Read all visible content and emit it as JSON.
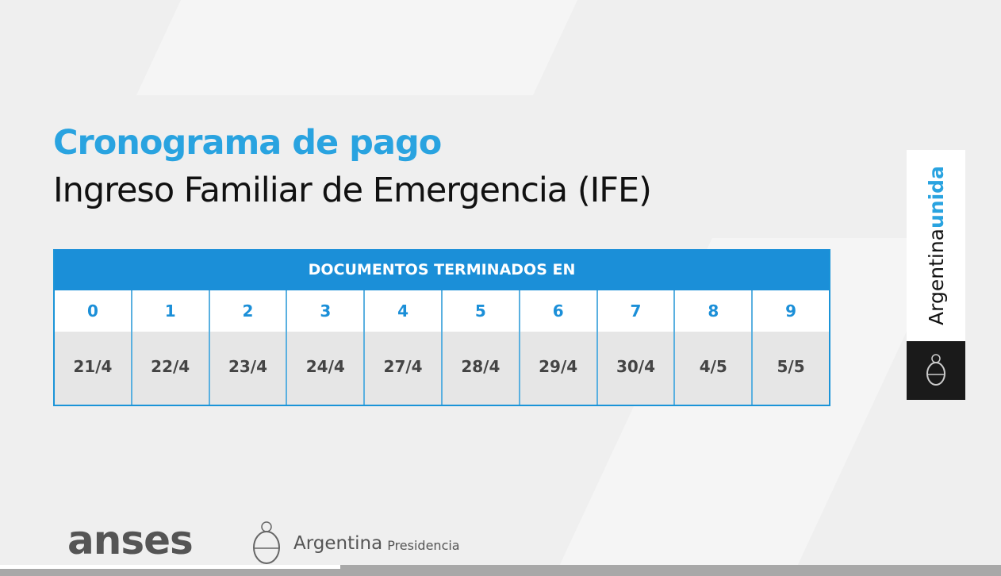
{
  "title": "Cronograma de pago",
  "subtitle": "Ingreso Familiar de Emergencia (IFE)",
  "table": {
    "header": "DOCUMENTOS TERMINADOS EN",
    "digits": [
      "0",
      "1",
      "2",
      "3",
      "4",
      "5",
      "6",
      "7",
      "8",
      "9"
    ],
    "dates": [
      "21/4",
      "22/4",
      "23/4",
      "24/4",
      "27/4",
      "28/4",
      "29/4",
      "30/4",
      "4/5",
      "5/5"
    ]
  },
  "side": {
    "word1": "Argentina",
    "word2": "unida"
  },
  "footer": {
    "anses": "anses",
    "argentina": "Argentina",
    "presidencia": "Presidencia"
  },
  "video": {
    "progress_fraction": 0.34
  },
  "colors": {
    "accent": "#1b8fd8",
    "title": "#29a3e0"
  }
}
